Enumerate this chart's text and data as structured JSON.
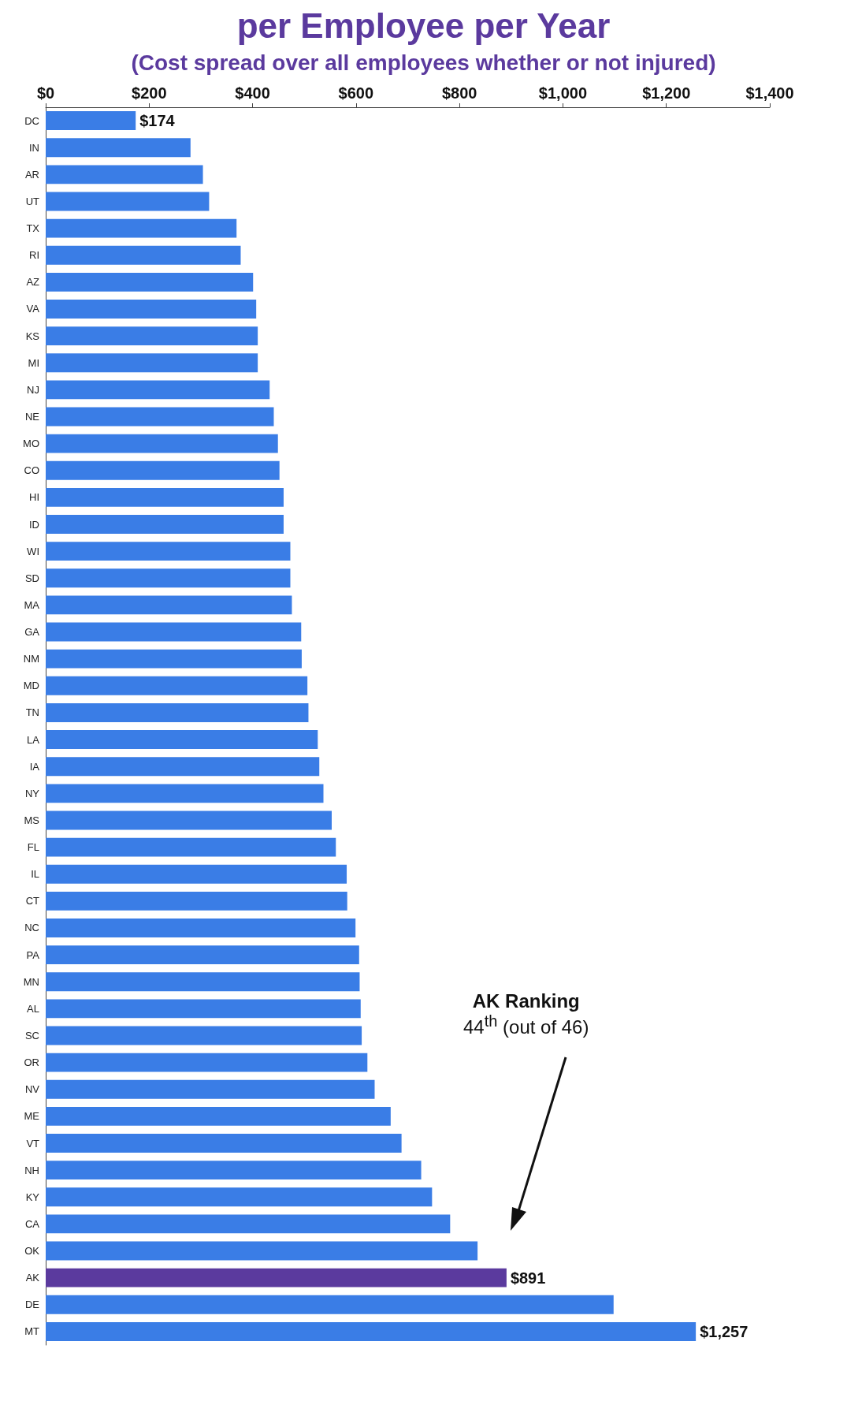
{
  "chart_data": {
    "type": "bar",
    "orientation": "horizontal",
    "title": "per Employee per Year",
    "subtitle": "(Cost spread over all employees whether or not injured)",
    "categories": [
      "DC",
      "IN",
      "AR",
      "UT",
      "TX",
      "RI",
      "AZ",
      "VA",
      "KS",
      "MI",
      "NJ",
      "NE",
      "MO",
      "CO",
      "HI",
      "ID",
      "WI",
      "SD",
      "MA",
      "GA",
      "NM",
      "MD",
      "TN",
      "LA",
      "IA",
      "NY",
      "MS",
      "FL",
      "IL",
      "CT",
      "NC",
      "PA",
      "MN",
      "AL",
      "SC",
      "OR",
      "NV",
      "ME",
      "VT",
      "NH",
      "KY",
      "CA",
      "OK",
      "AK",
      "DE",
      "MT"
    ],
    "values": [
      174,
      280,
      304,
      316,
      369,
      377,
      401,
      407,
      410,
      410,
      433,
      441,
      449,
      452,
      460,
      460,
      473,
      473,
      476,
      494,
      495,
      506,
      508,
      526,
      529,
      537,
      553,
      561,
      582,
      583,
      599,
      606,
      607,
      609,
      611,
      622,
      636,
      667,
      688,
      726,
      747,
      782,
      835,
      891,
      1098,
      1257
    ],
    "colors": [
      "#3a7de6",
      "#3a7de6",
      "#3a7de6",
      "#3a7de6",
      "#3a7de6",
      "#3a7de6",
      "#3a7de6",
      "#3a7de6",
      "#3a7de6",
      "#3a7de6",
      "#3a7de6",
      "#3a7de6",
      "#3a7de6",
      "#3a7de6",
      "#3a7de6",
      "#3a7de6",
      "#3a7de6",
      "#3a7de6",
      "#3a7de6",
      "#3a7de6",
      "#3a7de6",
      "#3a7de6",
      "#3a7de6",
      "#3a7de6",
      "#3a7de6",
      "#3a7de6",
      "#3a7de6",
      "#3a7de6",
      "#3a7de6",
      "#3a7de6",
      "#3a7de6",
      "#3a7de6",
      "#3a7de6",
      "#3a7de6",
      "#3a7de6",
      "#3a7de6",
      "#3a7de6",
      "#3a7de6",
      "#3a7de6",
      "#3a7de6",
      "#3a7de6",
      "#3a7de6",
      "#3a7de6",
      "#5b3a9e",
      "#3a7de6",
      "#3a7de6"
    ],
    "value_labels": [
      "$174",
      null,
      null,
      null,
      null,
      null,
      null,
      null,
      null,
      null,
      null,
      null,
      null,
      null,
      null,
      null,
      null,
      null,
      null,
      null,
      null,
      null,
      null,
      null,
      null,
      null,
      null,
      null,
      null,
      null,
      null,
      null,
      null,
      null,
      null,
      null,
      null,
      null,
      null,
      null,
      null,
      null,
      null,
      "$891",
      null,
      "$1,257"
    ],
    "xlim": [
      0,
      1400
    ],
    "xticks": [
      {
        "value": 0,
        "label": "$0"
      },
      {
        "value": 200,
        "label": "$200"
      },
      {
        "value": 400,
        "label": "$400"
      },
      {
        "value": 600,
        "label": "$600"
      },
      {
        "value": 800,
        "label": "$800"
      },
      {
        "value": 1000,
        "label": "$1,000"
      },
      {
        "value": 1200,
        "label": "$1,200"
      },
      {
        "value": 1400,
        "label": "$1,400"
      }
    ],
    "annotations": [
      "AK Ranking\n44$^{th}$ (out of 46)"
    ]
  }
}
